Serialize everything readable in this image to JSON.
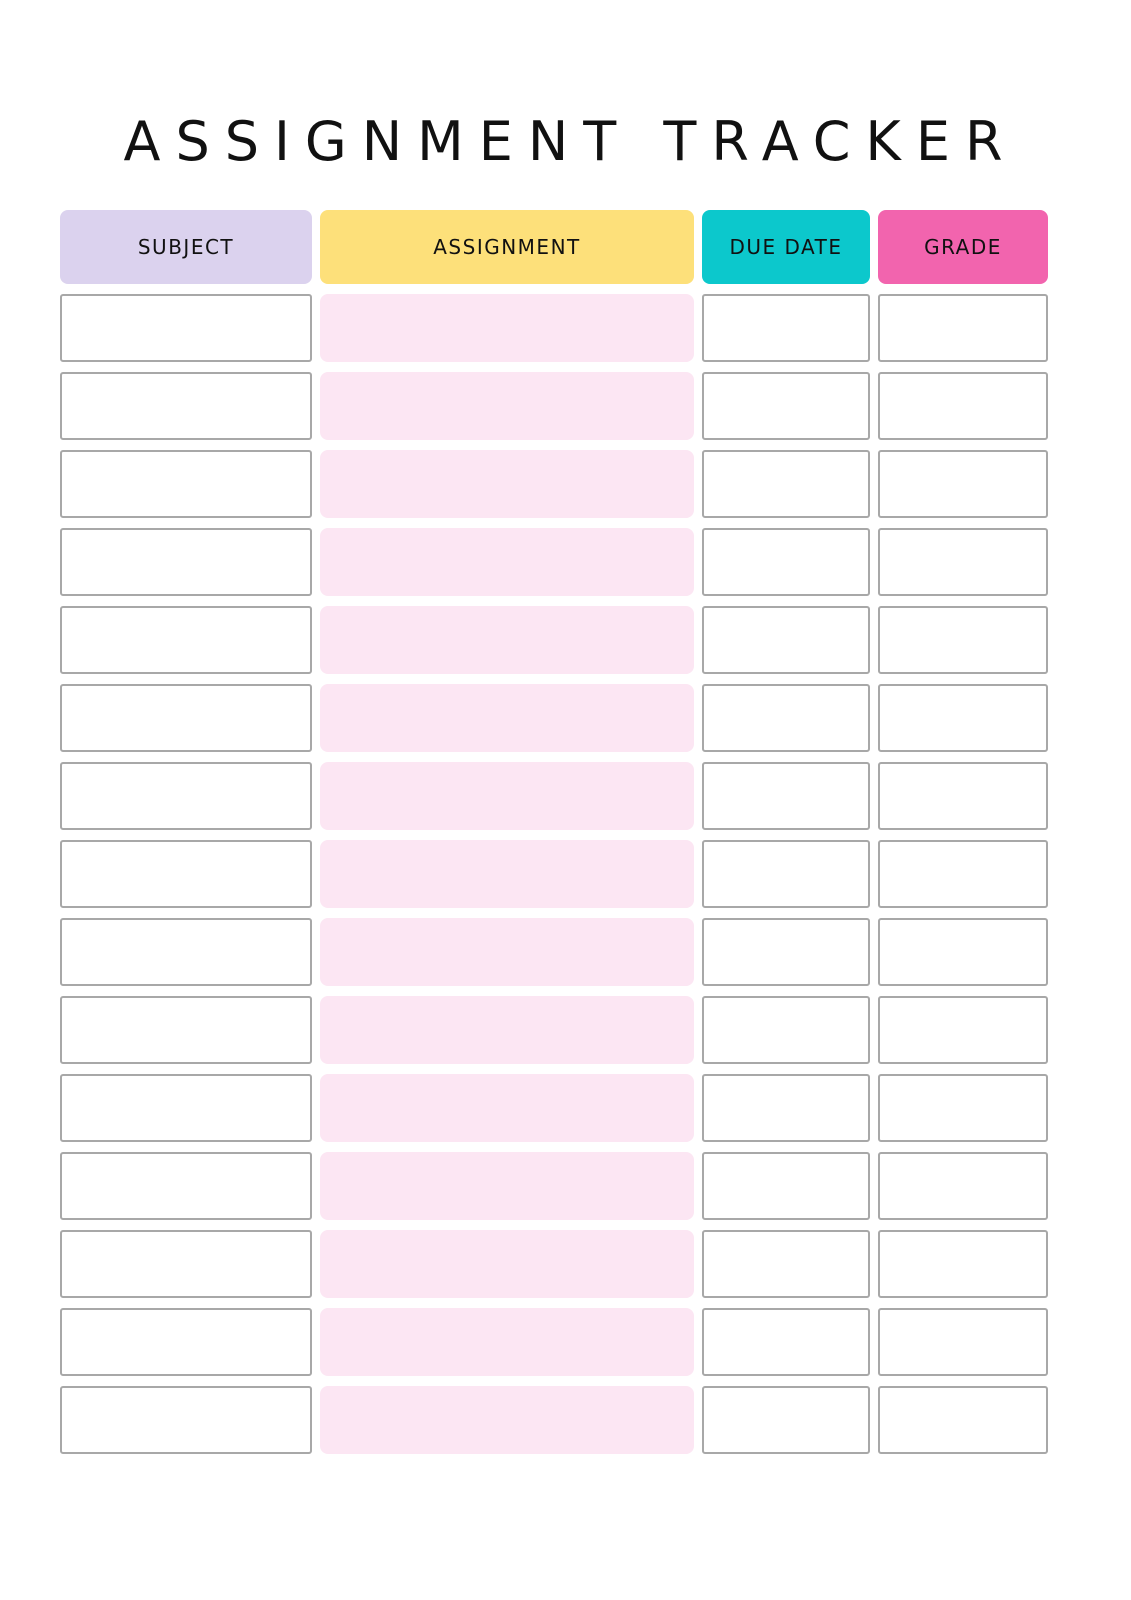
{
  "title": "ASSIGNMENT TRACKER",
  "columns": [
    {
      "label": "SUBJECT",
      "color": "#dbd2ee"
    },
    {
      "label": "ASSIGNMENT",
      "color": "#fde07a"
    },
    {
      "label": "DUE DATE",
      "color": "#0cc8cc"
    },
    {
      "label": "GRADE",
      "color": "#f264ae"
    }
  ],
  "row_fill_colors": {
    "assignment": "#fce6f3",
    "other": "#ffffff"
  },
  "rows": [
    [
      "",
      "",
      "",
      ""
    ],
    [
      "",
      "",
      "",
      ""
    ],
    [
      "",
      "",
      "",
      ""
    ],
    [
      "",
      "",
      "",
      ""
    ],
    [
      "",
      "",
      "",
      ""
    ],
    [
      "",
      "",
      "",
      ""
    ],
    [
      "",
      "",
      "",
      ""
    ],
    [
      "",
      "",
      "",
      ""
    ],
    [
      "",
      "",
      "",
      ""
    ],
    [
      "",
      "",
      "",
      ""
    ],
    [
      "",
      "",
      "",
      ""
    ],
    [
      "",
      "",
      "",
      ""
    ],
    [
      "",
      "",
      "",
      ""
    ],
    [
      "",
      "",
      "",
      ""
    ],
    [
      "",
      "",
      "",
      ""
    ]
  ]
}
